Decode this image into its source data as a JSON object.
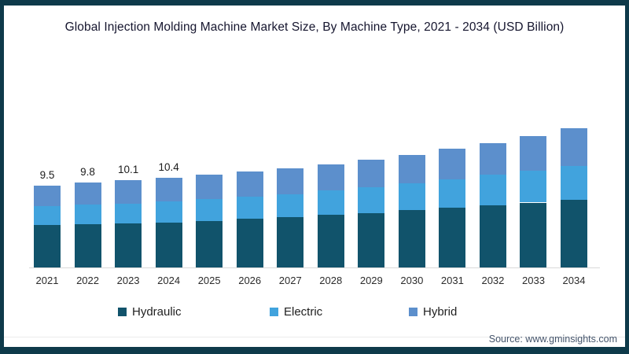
{
  "frame": {
    "border_color": "#0e3a4a",
    "background_color": "#ffffff",
    "axis_line_color": "#d9d9d9"
  },
  "title": "Global Injection Molding Machine Market Size, By Machine Type, 2021 - 2034 (USD Billion)",
  "source": "Source: www.gminsights.com",
  "legend": {
    "items": [
      {
        "label": "Hydraulic",
        "color": "#11536b"
      },
      {
        "label": "Electric",
        "color": "#41a3dd"
      },
      {
        "label": "Hybrid",
        "color": "#5c8fcc"
      }
    ]
  },
  "chart_data": {
    "type": "bar",
    "stacked": true,
    "title": "Global Injection Molding Machine Market Size, By Machine Type, 2021 - 2034 (USD Billion)",
    "xlabel": "",
    "ylabel": "USD Billion",
    "ylim": [
      0,
      17
    ],
    "grid": false,
    "legend_position": "bottom",
    "categories": [
      "2021",
      "2022",
      "2023",
      "2024",
      "2025",
      "2026",
      "2027",
      "2028",
      "2029",
      "2030",
      "2031",
      "2032",
      "2033",
      "2034"
    ],
    "series": [
      {
        "name": "Hydraulic",
        "color": "#11536b",
        "values": [
          4.9,
          5.0,
          5.1,
          5.2,
          5.4,
          5.6,
          5.8,
          6.1,
          6.3,
          6.6,
          6.9,
          7.2,
          7.5,
          7.8
        ]
      },
      {
        "name": "Electric",
        "color": "#41a3dd",
        "values": [
          2.2,
          2.3,
          2.3,
          2.4,
          2.5,
          2.6,
          2.7,
          2.8,
          3.0,
          3.1,
          3.3,
          3.5,
          3.7,
          3.9
        ]
      },
      {
        "name": "Hybrid",
        "color": "#5c8fcc",
        "values": [
          2.4,
          2.5,
          2.7,
          2.8,
          2.8,
          2.9,
          3.0,
          3.0,
          3.2,
          3.3,
          3.5,
          3.7,
          4.0,
          4.4
        ]
      }
    ],
    "totals": [
      9.5,
      9.8,
      10.1,
      10.4,
      10.7,
      11.1,
      11.5,
      11.9,
      12.5,
      13.0,
      13.7,
      14.4,
      15.2,
      16.1
    ],
    "bar_labels": [
      "9.5",
      "9.8",
      "10.1",
      "10.4",
      "",
      "",
      "",
      "",
      "",
      "",
      "",
      "",
      "",
      ""
    ]
  }
}
